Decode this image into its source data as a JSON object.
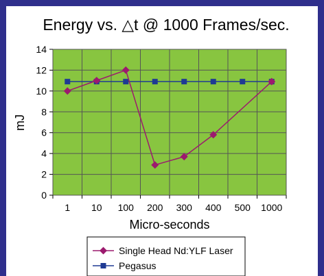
{
  "chart_data": {
    "type": "line",
    "title": "Energy vs. △t @ 1000 Frames/sec.",
    "xlabel": "Micro-seconds",
    "ylabel": "mJ",
    "categories": [
      "1",
      "10",
      "100",
      "200",
      "300",
      "400",
      "500",
      "1000"
    ],
    "ylim": [
      0,
      14
    ],
    "yticks": [
      0,
      2,
      4,
      6,
      8,
      10,
      12,
      14
    ],
    "grid": true,
    "legend_position": "bottom",
    "plot_background": "#88c540",
    "series": [
      {
        "name": "Single Head Nd:YLF Laser",
        "color": "#9c1a6e",
        "marker": "diamond",
        "x": [
          "1",
          "10",
          "100",
          "200",
          "300",
          "400",
          "1000"
        ],
        "values": [
          10,
          11,
          12,
          2.9,
          3.7,
          5.8,
          10.9
        ]
      },
      {
        "name": "Pegasus",
        "color": "#1f3a93",
        "marker": "square",
        "x": [
          "1",
          "10",
          "100",
          "200",
          "300",
          "400",
          "500",
          "1000"
        ],
        "values": [
          10.9,
          10.9,
          10.9,
          10.9,
          10.9,
          10.9,
          10.9,
          10.9
        ]
      }
    ]
  }
}
